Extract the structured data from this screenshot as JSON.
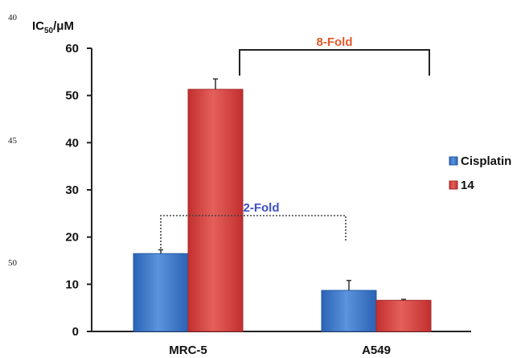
{
  "margin_numbers": [
    "40",
    "45",
    "50"
  ],
  "chart_data": {
    "type": "bar",
    "ylabel_main": "IC",
    "ylabel_sub": "50",
    "ylabel_unit": "/μM",
    "ylim": [
      0,
      60
    ],
    "yticks": [
      0,
      10,
      20,
      30,
      40,
      50,
      60
    ],
    "categories": [
      "MRC-5",
      "A549"
    ],
    "series": [
      {
        "name": "Cisplatin",
        "values": [
          16.5,
          8.7
        ],
        "errors": [
          0.8,
          2.1
        ],
        "color": "#2f6fc4"
      },
      {
        "name": "14",
        "values": [
          51.3,
          6.6
        ],
        "errors": [
          2.2,
          0.2
        ],
        "color": "#d23a3a"
      }
    ],
    "grid": false,
    "legend_position": "right",
    "annotations": [
      {
        "text": "8-Fold",
        "color": "#e05a2a",
        "style": "solid",
        "series": "14"
      },
      {
        "text": "2-Fold",
        "color": "#3c4fc6",
        "style": "dotted",
        "series": "Cisplatin"
      }
    ]
  }
}
